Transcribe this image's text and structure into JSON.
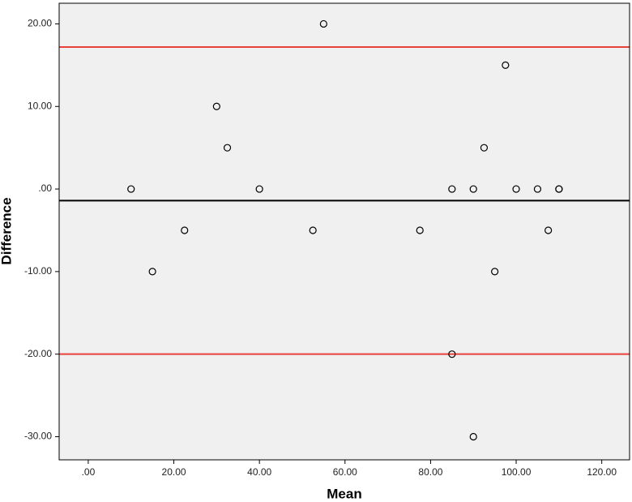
{
  "chart_data": {
    "type": "scatter",
    "x_label": "Mean",
    "y_label": "Difference",
    "x": [
      10,
      15,
      22.5,
      30,
      32.5,
      40,
      52.5,
      55,
      77.5,
      85,
      85,
      90,
      90,
      92.5,
      95,
      97.5,
      100,
      105,
      107.5,
      110,
      110
    ],
    "series": [
      {
        "color": "#000000",
        "values": [
          0,
          -10,
          -5,
          10,
          5,
          0,
          -5,
          20,
          -5,
          0,
          -20,
          0,
          -30,
          5,
          -10,
          15,
          0,
          0,
          -5,
          0,
          0
        ]
      }
    ],
    "reference_lines": [
      {
        "value": 17.2,
        "color": "#e8403a"
      },
      {
        "value": -1.4,
        "color": "#000000"
      },
      {
        "value": -20.0,
        "color": "#e8403a"
      }
    ],
    "xlim": [
      -6.8,
      126.5
    ],
    "ylim": [
      -32.8,
      22.5
    ],
    "xticks": [
      {
        "value": 0,
        "label": ".00"
      },
      {
        "value": 20,
        "label": "20.00"
      },
      {
        "value": 40,
        "label": "40.00"
      },
      {
        "value": 60,
        "label": "60.00"
      },
      {
        "value": 80,
        "label": "80.00"
      },
      {
        "value": 100,
        "label": "100.00"
      },
      {
        "value": 120,
        "label": "120.00"
      }
    ],
    "yticks": [
      {
        "value": -30,
        "label": "-30.00"
      },
      {
        "value": -20,
        "label": "-20.00"
      },
      {
        "value": -10,
        "label": "-10.00"
      },
      {
        "value": 0,
        "label": ".00"
      },
      {
        "value": 10,
        "label": "10.00"
      },
      {
        "value": 20,
        "label": "20.00"
      }
    ],
    "background": "#f0f0f0"
  }
}
